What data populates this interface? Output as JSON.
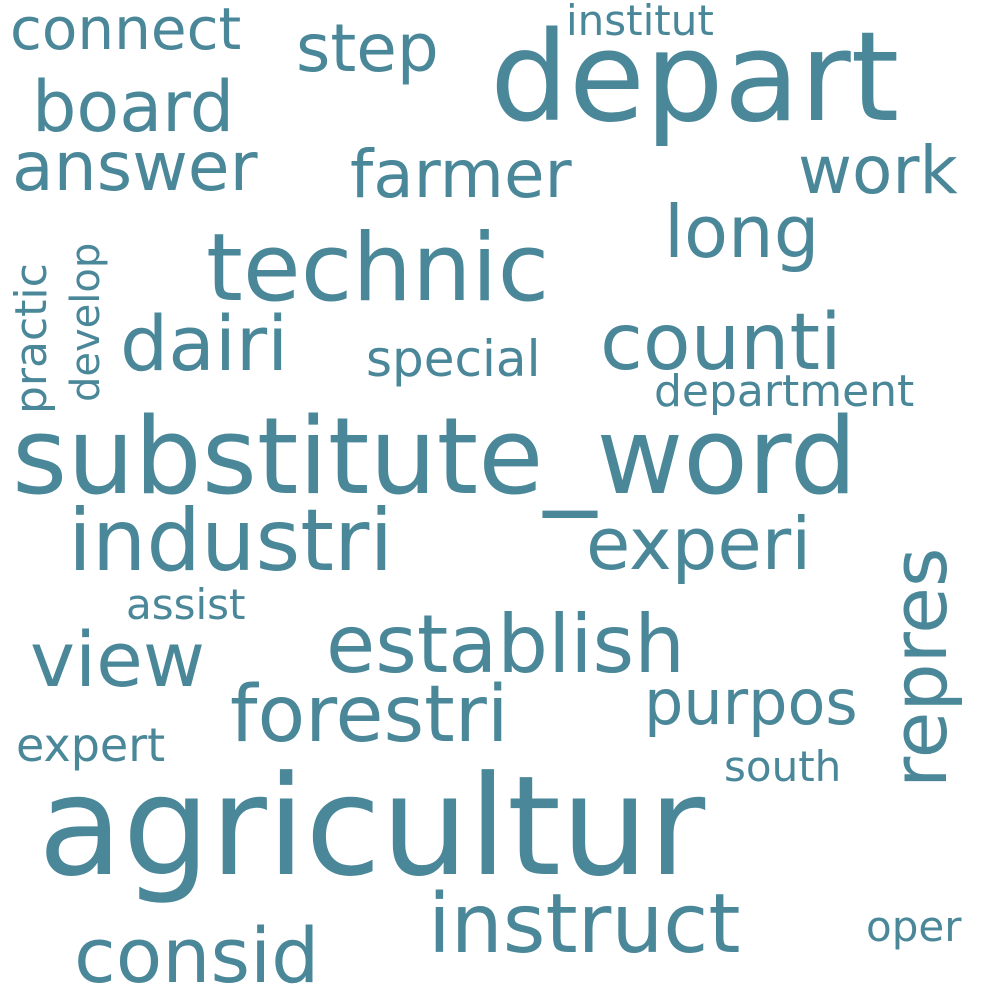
{
  "colors": {
    "word": "#4a8799",
    "background": "#ffffff"
  },
  "words": {
    "agricultur": "agricultur",
    "substitute_word": "substitute_word",
    "depart": "depart",
    "technic": "technic",
    "industri": "industri",
    "establish": "establish",
    "instruct": "instruct",
    "counti": "counti",
    "dairi": "dairi",
    "forestri": "forestri",
    "experi": "experi",
    "repres": "repres",
    "consid": "consid",
    "view": "view",
    "long": "long",
    "farmer": "farmer",
    "answer": "answer",
    "board": "board",
    "step": "step",
    "work": "work",
    "connect": "connect",
    "purpos": "purpos",
    "special": "special",
    "department": "department",
    "expert": "expert",
    "institut": "institut",
    "assist": "assist",
    "south": "south",
    "oper": "oper",
    "practic": "practic",
    "develop": "develop"
  }
}
